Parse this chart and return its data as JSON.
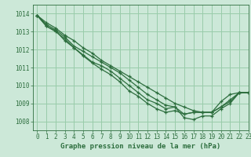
{
  "title": "Graphe pression niveau de la mer (hPa)",
  "bg_color": "#cce8d8",
  "grid_color": "#99ccaa",
  "line_color": "#2d6e3e",
  "xlim": [
    -0.5,
    23
  ],
  "ylim": [
    1007.5,
    1014.5
  ],
  "yticks": [
    1008,
    1009,
    1010,
    1011,
    1012,
    1013,
    1014
  ],
  "xticks": [
    0,
    1,
    2,
    3,
    4,
    5,
    6,
    7,
    8,
    9,
    10,
    11,
    12,
    13,
    14,
    15,
    16,
    17,
    18,
    19,
    20,
    21,
    22,
    23
  ],
  "series": [
    [
      1013.9,
      1013.5,
      1013.2,
      1012.8,
      1012.5,
      1012.1,
      1011.8,
      1011.4,
      1011.1,
      1010.8,
      1010.5,
      1010.2,
      1009.9,
      1009.6,
      1009.3,
      1009.0,
      1008.8,
      1008.6,
      1008.5,
      1008.5,
      1009.1,
      1009.5,
      1009.6,
      1009.6
    ],
    [
      1013.9,
      1013.4,
      1013.1,
      1012.7,
      1012.2,
      1011.9,
      1011.6,
      1011.3,
      1011.0,
      1010.7,
      1010.3,
      1009.9,
      1009.5,
      1009.2,
      1008.9,
      1008.8,
      1008.2,
      1008.1,
      1008.3,
      1008.3,
      1008.7,
      1009.0,
      1009.6,
      1009.6
    ],
    [
      1013.9,
      1013.3,
      1013.0,
      1012.6,
      1012.1,
      1011.7,
      1011.3,
      1011.1,
      1010.8,
      1010.4,
      1010.0,
      1009.6,
      1009.2,
      1009.0,
      1008.7,
      1008.8,
      1008.4,
      1008.5,
      1008.5,
      1008.5,
      1008.8,
      1009.1,
      1009.6,
      1009.6
    ],
    [
      1013.9,
      1013.3,
      1013.05,
      1012.5,
      1012.1,
      1011.65,
      1011.25,
      1010.9,
      1010.6,
      1010.2,
      1009.7,
      1009.4,
      1009.0,
      1008.7,
      1008.5,
      1008.6,
      1008.4,
      1008.5,
      1008.5,
      1008.5,
      1008.8,
      1009.2,
      1009.6,
      1009.6
    ]
  ],
  "title_fontsize": 6.5,
  "tick_fontsize": 5.5,
  "linewidth": 0.9,
  "markersize": 3.0
}
